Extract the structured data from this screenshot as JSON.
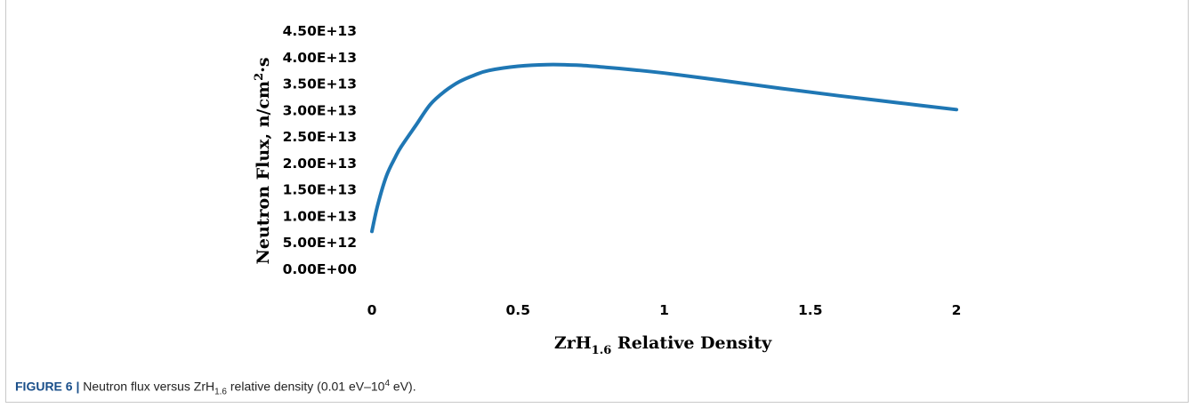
{
  "chart_data": {
    "type": "line",
    "title": "",
    "xlabel": {
      "main": "ZrH",
      "sub": "1.6",
      "rest": " Relative Density"
    },
    "ylabel": {
      "main": "Neutron Flux, n/cm",
      "sup": "2",
      "rest": "·s"
    },
    "xlim": [
      0,
      2
    ],
    "ylim": [
      0,
      45000000000000.0
    ],
    "x_ticks": [
      0,
      0.5,
      1,
      1.5,
      2
    ],
    "x_tick_labels": [
      "0",
      "0.5",
      "1",
      "1.5",
      "2"
    ],
    "y_ticks": [
      0,
      5000000000000.0,
      10000000000000.0,
      15000000000000.0,
      20000000000000.0,
      25000000000000.0,
      30000000000000.0,
      35000000000000.0,
      40000000000000.0,
      45000000000000.0
    ],
    "y_tick_labels": [
      "0.00E+00",
      "5.00E+12",
      "1.00E+13",
      "1.50E+13",
      "2.00E+13",
      "2.50E+13",
      "3.00E+13",
      "3.50E+13",
      "4.00E+13",
      "4.50E+13"
    ],
    "grid": false,
    "series": [
      {
        "color": "#1f77b4",
        "x": [
          0,
          0.02,
          0.05,
          0.08,
          0.1,
          0.15,
          0.2,
          0.25,
          0.3,
          0.35,
          0.4,
          0.5,
          0.6,
          0.7,
          0.8,
          0.9,
          1.0,
          1.2,
          1.4,
          1.6,
          1.8,
          2.0
        ],
        "y": [
          7000000000000.0,
          12000000000000.0,
          17500000000000.0,
          21000000000000.0,
          23000000000000.0,
          27000000000000.0,
          31000000000000.0,
          33500000000000.0,
          35300000000000.0,
          36500000000000.0,
          37400000000000.0,
          38200000000000.0,
          38500000000000.0,
          38400000000000.0,
          38000000000000.0,
          37500000000000.0,
          36900000000000.0,
          35500000000000.0,
          34000000000000.0,
          32600000000000.0,
          31300000000000.0,
          30000000000000.0
        ]
      }
    ]
  },
  "caption": {
    "label": "FIGURE 6 |",
    "text_before": " Neutron flux versus ZrH",
    "sub": "1.6",
    "text_after": " relative density (0.01 eV–10",
    "sup": "4",
    "text_end": " eV)."
  }
}
